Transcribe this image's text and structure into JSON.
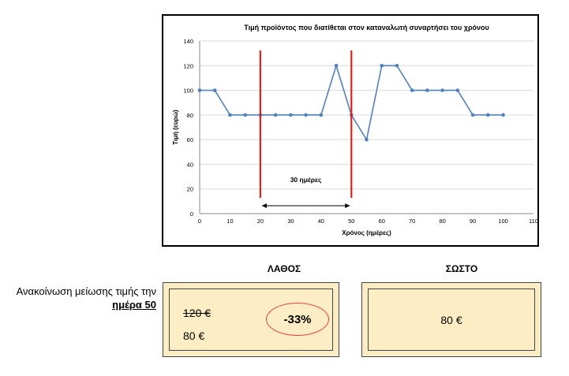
{
  "chart_data": {
    "type": "line",
    "title": "Τιμή προϊόντος που διατίθεται στον καταναλωτή συναρτήσει του χρόνου",
    "xlabel": "Χρόνος (ημέρες)",
    "ylabel": "Τιμή (ευρώ)",
    "xlim": [
      0,
      110
    ],
    "ylim": [
      0,
      140
    ],
    "xticks": [
      0,
      10,
      20,
      30,
      40,
      50,
      60,
      70,
      80,
      90,
      100,
      110
    ],
    "yticks": [
      0,
      20,
      40,
      60,
      80,
      100,
      120,
      140
    ],
    "grid": "horizontal",
    "series": [
      {
        "name": "Τιμή",
        "color": "#4f81bd",
        "x": [
          0,
          5,
          10,
          15,
          20,
          25,
          30,
          35,
          40,
          45,
          50,
          55,
          60,
          65,
          70,
          75,
          80,
          85,
          90,
          95,
          100
        ],
        "y": [
          100,
          100,
          80,
          80,
          80,
          80,
          80,
          80,
          80,
          120,
          80,
          60,
          120,
          120,
          100,
          100,
          100,
          100,
          80,
          80,
          80
        ]
      }
    ],
    "markers": [
      {
        "x": 20,
        "color": "#e02020"
      },
      {
        "x": 50,
        "color": "#e02020"
      }
    ],
    "annotation": {
      "label": "30 ημέρες",
      "from": 20,
      "to": 50
    }
  },
  "labels": {
    "wrong": "ΛΑΘΟΣ",
    "correct": "ΣΩΣΤΟ",
    "announcement_prefix": "Ανακοίνωση μείωσης τιμής την",
    "announcement_day": "ημέρα 50"
  },
  "wrong_box": {
    "old_price": "120 €",
    "new_price": "80 €",
    "discount": "-33%"
  },
  "correct_box": {
    "price": "80 €"
  },
  "colors": {
    "box_fill": "#fdedc4",
    "ellipse": "#e04040"
  }
}
